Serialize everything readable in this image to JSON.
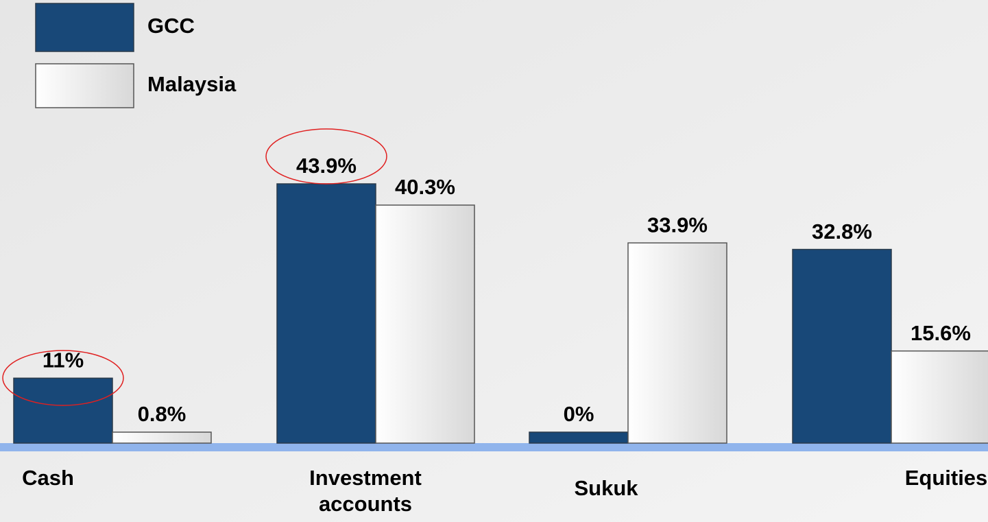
{
  "chart_data": {
    "type": "bar",
    "categories": [
      "Cash",
      "Investment accounts",
      "Sukuk",
      "Equities"
    ],
    "series": [
      {
        "name": "GCC",
        "color": "#184878",
        "values": [
          11,
          43.9,
          0,
          32.8
        ],
        "value_labels": [
          "11%",
          "43.9%",
          "0%",
          "32.8%"
        ]
      },
      {
        "name": "Malaysia",
        "color": "#ffffff",
        "values": [
          0.8,
          40.3,
          33.9,
          15.6
        ],
        "value_labels": [
          "0.8%",
          "40.3%",
          "33.9%",
          "15.6%"
        ]
      }
    ],
    "legend": "upper left"
  }
}
